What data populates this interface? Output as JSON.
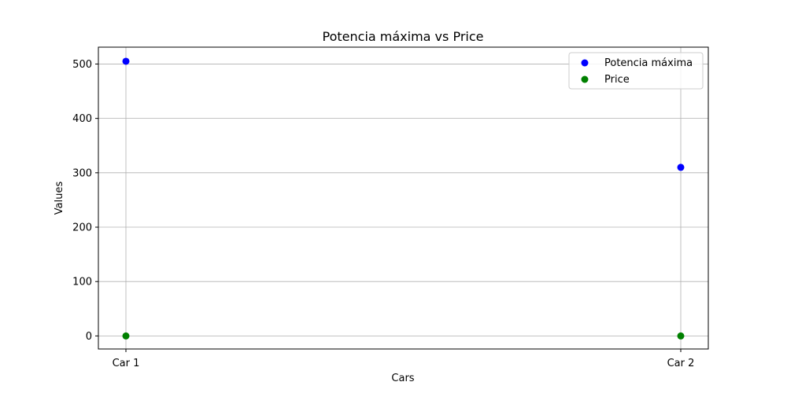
{
  "chart_data": {
    "type": "scatter",
    "title": "Potencia máxima vs Price",
    "xlabel": "Cars",
    "ylabel": "Values",
    "categories": [
      "Car 1",
      "Car 2"
    ],
    "series": [
      {
        "name": "Potencia máxima",
        "color": "#0000ff",
        "values": [
          505,
          310
        ]
      },
      {
        "name": "Price",
        "color": "#008000",
        "values": [
          0,
          0
        ]
      }
    ],
    "yticks": [
      0,
      100,
      200,
      300,
      400,
      500
    ],
    "ylim": [
      -24,
      531
    ],
    "grid": true,
    "legend_position": "top-right"
  }
}
